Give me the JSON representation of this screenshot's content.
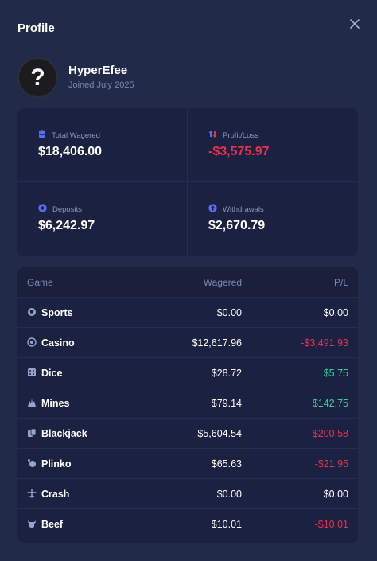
{
  "modal": {
    "title": "Profile",
    "close_icon": "close-icon"
  },
  "user": {
    "avatar_glyph": "?",
    "username": "HyperEfee",
    "joined": "Joined July 2025"
  },
  "stats": {
    "total_wagered": {
      "label": "Total Wagered",
      "value": "$18,406.00",
      "icon": "database-icon"
    },
    "profit_loss": {
      "label": "Profit/Loss",
      "value": "-$3,575.97",
      "icon": "arrows-updown-icon"
    },
    "deposits": {
      "label": "Deposits",
      "value": "$6,242.97",
      "icon": "deposit-icon"
    },
    "withdrawals": {
      "label": "Withdrawals",
      "value": "$2,670.79",
      "icon": "withdraw-icon"
    }
  },
  "table": {
    "headers": {
      "game": "Game",
      "wagered": "Wagered",
      "pl": "P/L"
    },
    "rows": [
      {
        "game": "Sports",
        "icon": "sports-icon",
        "wagered": "$0.00",
        "pl": "$0.00",
        "pl_sign": "zero"
      },
      {
        "game": "Casino",
        "icon": "casino-icon",
        "wagered": "$12,617.96",
        "pl": "-$3,491.93",
        "pl_sign": "neg"
      },
      {
        "game": "Dice",
        "icon": "dice-icon",
        "wagered": "$28.72",
        "pl": "$5.75",
        "pl_sign": "pos"
      },
      {
        "game": "Mines",
        "icon": "mines-icon",
        "wagered": "$79.14",
        "pl": "$142.75",
        "pl_sign": "pos"
      },
      {
        "game": "Blackjack",
        "icon": "blackjack-icon",
        "wagered": "$5,604.54",
        "pl": "-$200.58",
        "pl_sign": "neg"
      },
      {
        "game": "Plinko",
        "icon": "plinko-icon",
        "wagered": "$65.63",
        "pl": "-$21.95",
        "pl_sign": "neg"
      },
      {
        "game": "Crash",
        "icon": "crash-icon",
        "wagered": "$0.00",
        "pl": "$0.00",
        "pl_sign": "zero"
      },
      {
        "game": "Beef",
        "icon": "beef-icon",
        "wagered": "$10.01",
        "pl": "-$10.01",
        "pl_sign": "neg"
      }
    ]
  },
  "colors": {
    "background": "#222a4a",
    "card": "#1b2140",
    "accent_blue": "#5b6cf0",
    "negative": "#e5324f",
    "positive": "#2ed39a"
  }
}
